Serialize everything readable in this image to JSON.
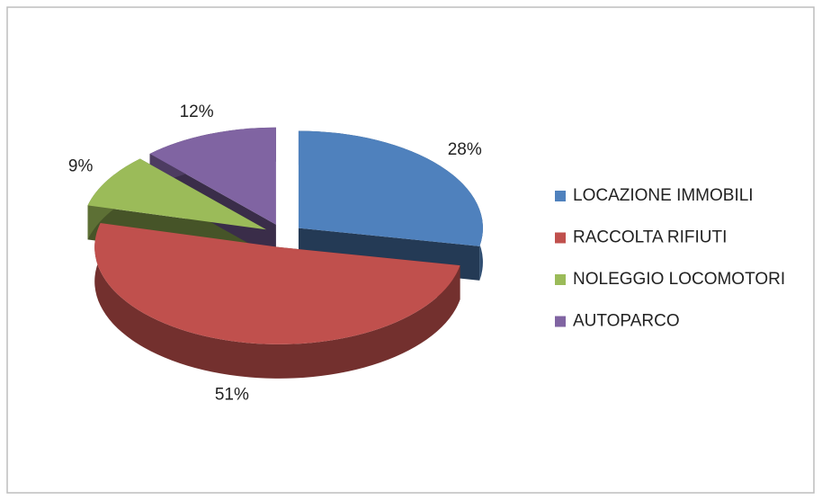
{
  "chart_data": {
    "type": "pie",
    "style": "3d-exploded",
    "categories": [
      "LOCAZIONE IMMOBILI",
      "RACCOLTA RIFIUTI",
      "NOLEGGIO LOCOMOTORI",
      "AUTOPARCO"
    ],
    "values": [
      28,
      51,
      9,
      12
    ],
    "value_labels": [
      "28%",
      "51%",
      "9%",
      "12%"
    ],
    "colors": [
      "#4f81bd",
      "#c0504d",
      "#9bbb59",
      "#8064a2"
    ],
    "legend": "right"
  }
}
